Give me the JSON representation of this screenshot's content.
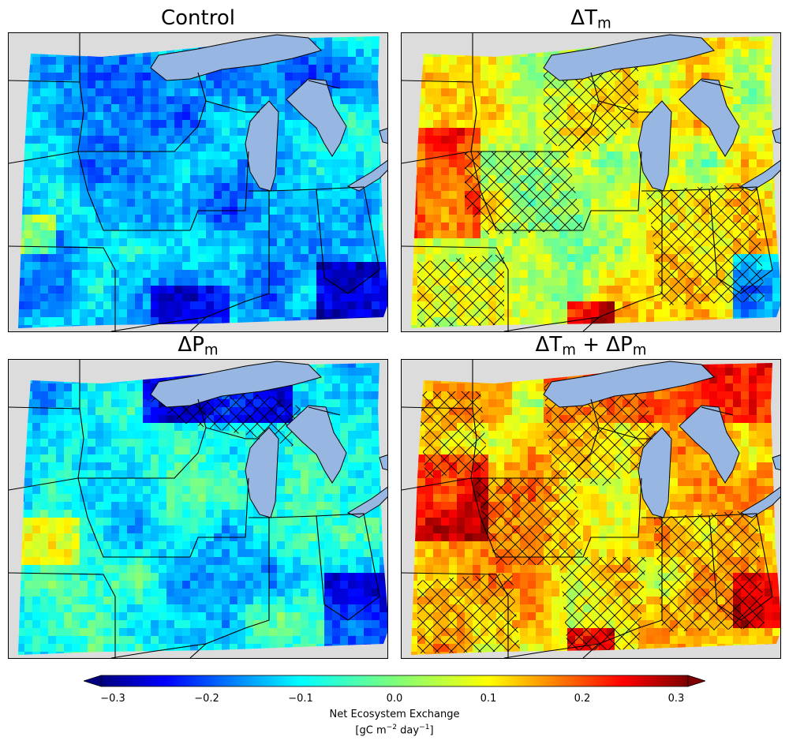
{
  "panels": [
    {
      "id": "control",
      "title": "Control",
      "title_main": "Control",
      "sub": ""
    },
    {
      "id": "dT",
      "title": "ΔTm",
      "title_main": "ΔT",
      "sub": "m"
    },
    {
      "id": "dP",
      "title": "ΔPm",
      "title_main": "ΔP",
      "sub": "m"
    },
    {
      "id": "dTdP",
      "title": "ΔTm + ΔPm",
      "title_main": "ΔT",
      "sub": "m"
    }
  ],
  "colorbar": {
    "ticks": [
      "−0.3",
      "−0.2",
      "−0.1",
      "0.0",
      "0.1",
      "0.2",
      "0.3"
    ],
    "label_line1": "Net Ecosystem Exchange",
    "label_unit_prefix": "[gC m",
    "label_exp1": "−2",
    "label_mid": " day",
    "label_exp2": "−1",
    "label_suffix": "]",
    "colormap": "jet",
    "extend": "both"
  },
  "colors": {
    "land_bg": "#dcdcdc",
    "water": "#97b6e1",
    "hatch": "#000000"
  }
}
